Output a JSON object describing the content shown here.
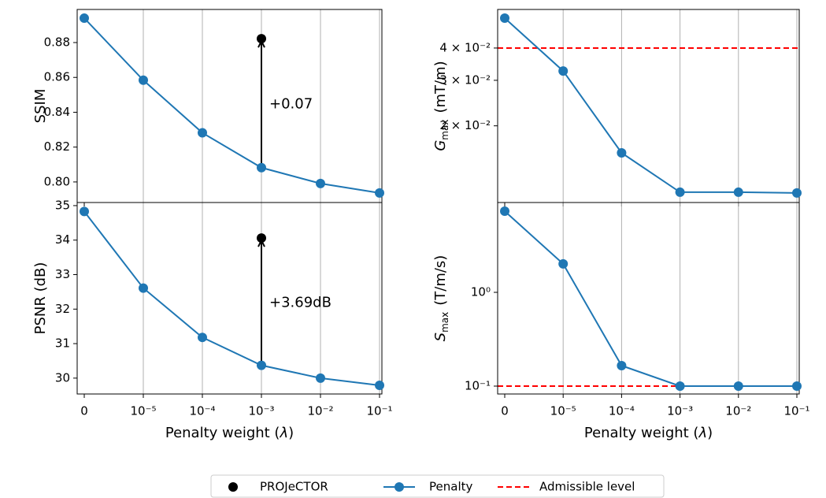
{
  "chart_data": [
    {
      "type": "line",
      "ylabel": {
        "text": "SSIM"
      },
      "categories": [
        "0",
        "10⁻⁵",
        "10⁻⁴",
        "10⁻³",
        "10⁻²",
        "10⁻¹"
      ],
      "series": [
        {
          "name": "Penalty",
          "color": "#1f77b4",
          "mode": "lines+markers",
          "values": [
            0.894,
            0.8584,
            0.8282,
            0.8082,
            0.7991,
            0.7937
          ]
        },
        {
          "name": "PROJeCTOR",
          "color": "#000000",
          "mode": "markers",
          "values": [
            null,
            null,
            null,
            0.8822,
            null,
            null
          ]
        }
      ],
      "annotation": "+0.07",
      "ylim": [
        0.7882,
        0.899
      ],
      "yticks": [
        {
          "value": 0.8,
          "label": "0.80"
        },
        {
          "value": 0.82,
          "label": "0.82"
        },
        {
          "value": 0.84,
          "label": "0.84"
        },
        {
          "value": 0.86,
          "label": "0.86"
        },
        {
          "value": 0.88,
          "label": "0.88"
        }
      ],
      "grid": true,
      "log": false
    },
    {
      "type": "line",
      "ylabel": {
        "text": "PSNR (dB)"
      },
      "xlabel": {
        "text": "Penalty weight (",
        "symbol": "λ",
        "end": ")"
      },
      "categories": [
        "0",
        "10⁻⁵",
        "10⁻⁴",
        "10⁻³",
        "10⁻²",
        "10⁻¹"
      ],
      "series": [
        {
          "name": "Penalty",
          "color": "#1f77b4",
          "mode": "lines+markers",
          "values": [
            34.83,
            32.61,
            31.18,
            30.37,
            30.0,
            29.79
          ]
        },
        {
          "name": "PROJeCTOR",
          "color": "#000000",
          "mode": "markers",
          "values": [
            null,
            null,
            null,
            34.06,
            null,
            null
          ]
        }
      ],
      "annotation": "+3.69dB",
      "ylim": [
        29.54,
        35.09
      ],
      "yticks": [
        30,
        31,
        32,
        33,
        34,
        35
      ],
      "grid": true,
      "log": false
    },
    {
      "type": "line",
      "ylabel": {
        "text": "G",
        "sub": "max",
        "unit": "(mT/m)"
      },
      "categories": [
        "0",
        "10⁻⁵",
        "10⁻⁴",
        "10⁻³",
        "10⁻²",
        "10⁻¹"
      ],
      "series": [
        {
          "name": "Penalty",
          "color": "#1f77b4",
          "mode": "lines+markers",
          "values": [
            0.0522,
            0.0326,
            0.01572,
            0.01107,
            0.01107,
            0.011
          ]
        }
      ],
      "reference": {
        "name": "Admissible level",
        "color": "#ff0000",
        "value": 0.04
      },
      "ylim": [
        0.0101,
        0.0564
      ],
      "yticks": [
        {
          "value": 0.02,
          "label": "2 × 10⁻²"
        },
        {
          "value": 0.03,
          "label": "3 × 10⁻²"
        },
        {
          "value": 0.04,
          "label": "4 × 10⁻²"
        }
      ],
      "grid": true,
      "log": true
    },
    {
      "type": "line",
      "ylabel": {
        "text": "S",
        "sub": "max",
        "unit": "(T/m/s)"
      },
      "xlabel": {
        "text": "Penalty weight (",
        "symbol": "λ",
        "end": ")"
      },
      "categories": [
        "0",
        "10⁻⁵",
        "10⁻⁴",
        "10⁻³",
        "10⁻²",
        "10⁻¹"
      ],
      "series": [
        {
          "name": "Penalty",
          "color": "#1f77b4",
          "mode": "lines+markers",
          "values": [
            7.34,
            2.01,
            0.1654,
            0.1,
            0.1,
            0.1
          ]
        }
      ],
      "reference": {
        "name": "Admissible level",
        "color": "#ff0000",
        "value": 0.1
      },
      "ylim": [
        0.0824,
        9.08
      ],
      "yticks": [
        {
          "value": 0.1,
          "label": "10⁻¹"
        },
        {
          "value": 1,
          "label": "10⁰"
        }
      ],
      "grid": true,
      "log": true
    }
  ]
}
